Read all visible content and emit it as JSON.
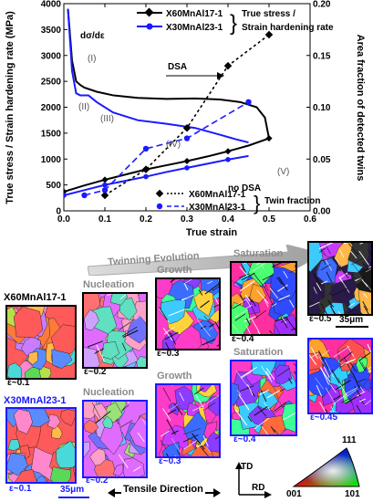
{
  "chart_data": {
    "type": "line",
    "xlabel": "True strain",
    "ylabel_left": "True stress / Strain hardening rate (MPa)",
    "ylabel_right": "Area fraction of detected twins",
    "xlim": [
      0,
      0.6
    ],
    "ylim_left": [
      0,
      4000
    ],
    "ylim_right": [
      0,
      0.2
    ],
    "x_ticks": [
      "0.0",
      "0.1",
      "0.2",
      "0.3",
      "0.4",
      "0.5",
      "0.6"
    ],
    "y_ticks_left": [
      "0",
      "500",
      "1000",
      "1500",
      "2000",
      "2500",
      "3000",
      "3500",
      "4000"
    ],
    "y_ticks_right": [
      "0.00",
      "0.05",
      "0.10",
      "0.15",
      "0.20"
    ],
    "series": [
      {
        "name": "X60MnAl17-1",
        "kind": "true_stress",
        "color": "#000000",
        "x": [
          0.0,
          0.05,
          0.1,
          0.15,
          0.2,
          0.25,
          0.3,
          0.35,
          0.4,
          0.45,
          0.5
        ],
        "y": [
          370,
          490,
          600,
          700,
          800,
          880,
          960,
          1050,
          1150,
          1260,
          1400
        ]
      },
      {
        "name": "X60MnAl17-1",
        "kind": "strain_hardening_rate",
        "color": "#000000",
        "x": [
          0.01,
          0.02,
          0.03,
          0.04,
          0.05,
          0.08,
          0.12,
          0.18,
          0.25,
          0.32,
          0.38,
          0.43,
          0.47,
          0.49,
          0.5
        ],
        "y": [
          3900,
          2900,
          2500,
          2430,
          2380,
          2300,
          2230,
          2180,
          2160,
          2170,
          2150,
          2100,
          2000,
          1800,
          1400
        ]
      },
      {
        "name": "X30MnAl23-1",
        "kind": "true_stress",
        "color": "#1a1aff",
        "x": [
          0.0,
          0.05,
          0.1,
          0.15,
          0.2,
          0.25,
          0.3,
          0.35,
          0.4,
          0.45
        ],
        "y": [
          300,
          400,
          500,
          580,
          660,
          750,
          830,
          910,
          990,
          1060
        ]
      },
      {
        "name": "X30MnAl23-1",
        "kind": "strain_hardening_rate",
        "color": "#1a1aff",
        "x": [
          0.01,
          0.02,
          0.03,
          0.04,
          0.06,
          0.08,
          0.12,
          0.18,
          0.25,
          0.32,
          0.38,
          0.42,
          0.45
        ],
        "y": [
          3900,
          2700,
          2270,
          2230,
          2230,
          2100,
          1900,
          1750,
          1680,
          1600,
          1470,
          1380,
          1320
        ]
      }
    ],
    "twin_fraction": [
      {
        "name": "X60MnAl17-1",
        "color": "#000000",
        "marker": "diamond",
        "linestyle": "dotted",
        "x": [
          0.1,
          0.2,
          0.3,
          0.4,
          0.5
        ],
        "y": [
          0.015,
          0.04,
          0.08,
          0.14,
          0.17
        ]
      },
      {
        "name": "X30MnAl23-1",
        "color": "#1a1aff",
        "marker": "circle",
        "linestyle": "dashed",
        "x": [
          0.05,
          0.1,
          0.2,
          0.3,
          0.45
        ],
        "y": [
          0.015,
          0.02,
          0.06,
          0.07,
          0.105
        ]
      }
    ],
    "legend_top": [
      {
        "label": "X60MnAl17-1",
        "color": "#000000"
      },
      {
        "label": "X30MnAl23-1",
        "color": "#1a1aff"
      }
    ],
    "legend_top_group": "True stress /\nStrain hardening rate",
    "legend_bottom": [
      {
        "label": "X60MnAl17-1",
        "color": "#000000"
      },
      {
        "label": "X30MnAl23-1",
        "color": "#1a1aff"
      }
    ],
    "legend_bottom_group": "Twin fraction",
    "annotations": [
      "dσ/dε",
      "(I)",
      "(II)",
      "(III)",
      "(IV)",
      "(V)",
      "DSA",
      "no DSA"
    ]
  },
  "evolution": {
    "arrow_label": "Twinning Evolution",
    "alloy_top": "X60MnAl17-1",
    "alloy_bottom": "X30MnAl23-1",
    "stages": {
      "nucleation": "Nucleation",
      "growth": "Growth",
      "saturation": "Saturation"
    },
    "strains_top": [
      "ε~0.1",
      "ε~0.2",
      "ε~0.3",
      "ε~0.4",
      "ε~0.5"
    ],
    "strains_bottom": [
      "ε~0.1",
      "ε~0.2",
      "ε~0.3",
      "ε~0.4",
      "ε~0.45"
    ],
    "scalebar_top": "35μm",
    "scalebar_bottom": "35μm",
    "tensile_direction": "Tensile Direction",
    "axis_td": "TD",
    "axis_rd": "RD",
    "ipf_labels": [
      "001",
      "101",
      "111"
    ]
  }
}
